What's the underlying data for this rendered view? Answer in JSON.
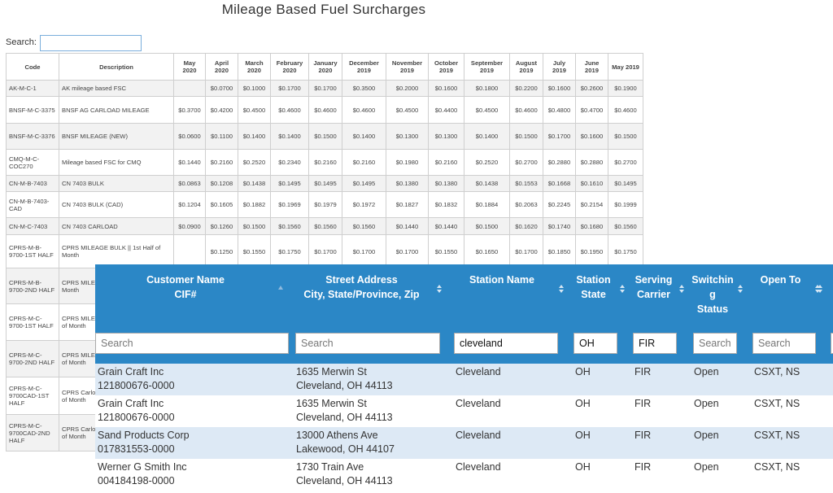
{
  "title": "Mileage Based Fuel Surcharges",
  "search_label": "Search:",
  "surcharge_table": {
    "columns": [
      "Code",
      "Description",
      "May 2020",
      "April 2020",
      "March 2020",
      "February 2020",
      "January 2020",
      "December 2019",
      "November 2019",
      "October 2019",
      "September 2019",
      "August 2019",
      "July 2019",
      "June 2019",
      "May 2019"
    ],
    "rows": [
      {
        "code": "AK-M-C-1",
        "description": "AK mileage based FSC",
        "values": [
          null,
          "$0.0700",
          "$0.1000",
          "$0.1700",
          "$0.1700",
          "$0.3500",
          "$0.2000",
          "$0.1600",
          "$0.1800",
          "$0.2200",
          "$0.1600",
          "$0.2600",
          "$0.1900"
        ]
      },
      {
        "code": "BNSF-M-C-3375",
        "description": "BNSF AG CARLOAD MILEAGE",
        "values": [
          "$0.3700",
          "$0.4200",
          "$0.4500",
          "$0.4600",
          "$0.4600",
          "$0.4600",
          "$0.4500",
          "$0.4400",
          "$0.4500",
          "$0.4600",
          "$0.4800",
          "$0.4700",
          "$0.4600"
        ]
      },
      {
        "code": "BNSF-M-C-3376",
        "description": "BNSF MILEAGE (NEW)",
        "values": [
          "$0.0600",
          "$0.1100",
          "$0.1400",
          "$0.1400",
          "$0.1500",
          "$0.1400",
          "$0.1300",
          "$0.1300",
          "$0.1400",
          "$0.1500",
          "$0.1700",
          "$0.1600",
          "$0.1500"
        ]
      },
      {
        "code": "CMQ-M-C-COC270",
        "description": "Mileage based FSC for CMQ",
        "values": [
          "$0.1440",
          "$0.2160",
          "$0.2520",
          "$0.2340",
          "$0.2160",
          "$0.2160",
          "$0.1980",
          "$0.2160",
          "$0.2520",
          "$0.2700",
          "$0.2880",
          "$0.2880",
          "$0.2700"
        ]
      },
      {
        "code": "CN-M-B-7403",
        "description": "CN 7403 BULK",
        "values": [
          "$0.0863",
          "$0.1208",
          "$0.1438",
          "$0.1495",
          "$0.1495",
          "$0.1495",
          "$0.1380",
          "$0.1380",
          "$0.1438",
          "$0.1553",
          "$0.1668",
          "$0.1610",
          "$0.1495"
        ]
      },
      {
        "code": "CN-M-B-7403-CAD",
        "description": "CN 7403 BULK (CAD)",
        "values": [
          "$0.1204",
          "$0.1605",
          "$0.1882",
          "$0.1969",
          "$0.1979",
          "$0.1972",
          "$0.1827",
          "$0.1832",
          "$0.1884",
          "$0.2063",
          "$0.2245",
          "$0.2154",
          "$0.1999"
        ]
      },
      {
        "code": "CN-M-C-7403",
        "description": "CN 7403 CARLOAD",
        "values": [
          "$0.0900",
          "$0.1260",
          "$0.1500",
          "$0.1560",
          "$0.1560",
          "$0.1560",
          "$0.1440",
          "$0.1440",
          "$0.1500",
          "$0.1620",
          "$0.1740",
          "$0.1680",
          "$0.1560"
        ]
      },
      {
        "code": "CPRS-M-B-9700-1ST HALF",
        "description": "CPRS MILEAGE BULK || 1st Half of Month",
        "values": [
          null,
          "$0.1250",
          "$0.1550",
          "$0.1750",
          "$0.1700",
          "$0.1700",
          "$0.1700",
          "$0.1550",
          "$0.1650",
          "$0.1700",
          "$0.1850",
          "$0.1950",
          "$0.1750"
        ]
      },
      {
        "code": "CPRS-M-B-9700-2ND HALF",
        "description": "CPRS MILEAGE BULK || 2nd Half of Month"
      },
      {
        "code": "CPRS-M-C-9700-1ST HALF",
        "description": "CPRS MILEAGE CARLOAD || 1st Half of Month"
      },
      {
        "code": "CPRS-M-C-9700-2ND HALF",
        "description": "CPRS MILEAGE CARLOAD || 2nd Half of Month"
      },
      {
        "code": "CPRS-M-C-9700CAD-1ST HALF",
        "description": "CPRS Carload Mileage CAD || 1st Half of Month"
      },
      {
        "code": "CPRS-M-C-9700CAD-2ND HALF",
        "description": "CPRS Carload Mileage CAD || 2nd Half of Month"
      }
    ]
  },
  "customer_table": {
    "columns": [
      [
        "Customer Name",
        "CIF#"
      ],
      [
        "Street Address",
        "City, State/Province, Zip"
      ],
      [
        "Station Name"
      ],
      [
        "Station",
        "State"
      ],
      [
        "Serving",
        "Carrier"
      ],
      [
        "Switchin",
        "g",
        "Status"
      ],
      [
        "Open To"
      ]
    ],
    "filters": [
      {
        "placeholder": "Search"
      },
      {
        "placeholder": "Search"
      },
      {
        "value": "cleveland"
      },
      {
        "value": "OH"
      },
      {
        "value": "FIR"
      },
      {
        "placeholder": "Search"
      },
      {
        "placeholder": "Search"
      }
    ],
    "rows": [
      {
        "cells": [
          [
            "Grain Craft Inc",
            "121800676-0000"
          ],
          [
            "1635 Merwin St",
            "Cleveland, OH 44113"
          ],
          [
            "Cleveland"
          ],
          [
            "OH"
          ],
          [
            "FIR"
          ],
          [
            "Open"
          ],
          [
            "CSXT, NS"
          ]
        ]
      },
      {
        "cells": [
          [
            "Grain Craft Inc",
            "121800676-0000"
          ],
          [
            "1635 Merwin St",
            "Cleveland, OH 44113"
          ],
          [
            "Cleveland"
          ],
          [
            "OH"
          ],
          [
            "FIR"
          ],
          [
            "Open"
          ],
          [
            "CSXT, NS"
          ]
        ]
      },
      {
        "cells": [
          [
            "Sand Products Corp",
            "017831553-0000"
          ],
          [
            "13000 Athens Ave",
            "Lakewood, OH 44107"
          ],
          [
            "Cleveland"
          ],
          [
            "OH"
          ],
          [
            "FIR"
          ],
          [
            "Open"
          ],
          [
            "CSXT, NS"
          ]
        ]
      },
      {
        "cells": [
          [
            "Werner G Smith Inc",
            "004184198-0000"
          ],
          [
            "1730 Train Ave",
            "Cleveland, OH 44113"
          ],
          [
            "Cleveland"
          ],
          [
            "OH"
          ],
          [
            "FIR"
          ],
          [
            "Open"
          ],
          [
            "CSXT, NS"
          ]
        ]
      }
    ]
  }
}
